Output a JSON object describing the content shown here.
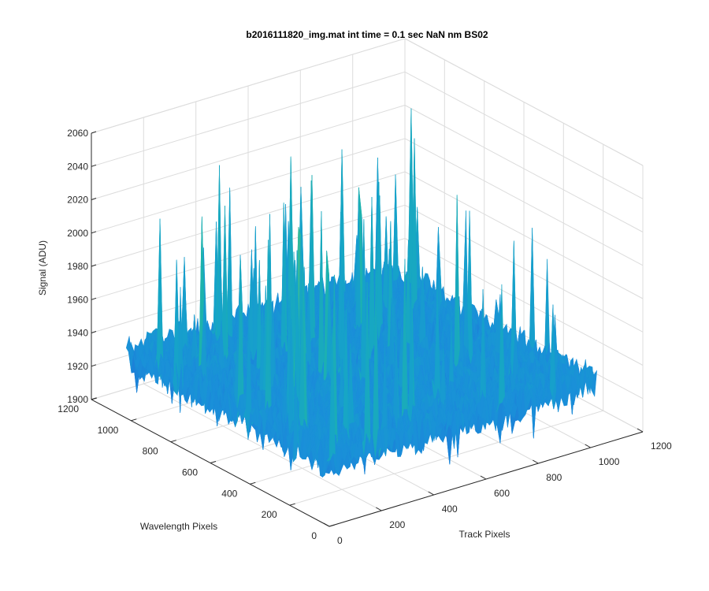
{
  "chart_data": {
    "type": "surface",
    "title": "b2016111820_img.mat int time = 0.1 sec  NaN nm BS02",
    "xlabel": "Track Pixels",
    "ylabel": "Wavelength Pixels",
    "zlabel": "Signal (ADU)",
    "xlim": [
      0,
      1200
    ],
    "ylim": [
      0,
      1200
    ],
    "zlim": [
      1900,
      2060
    ],
    "xticks": [
      "0",
      "200",
      "400",
      "600",
      "800",
      "1000",
      "1200"
    ],
    "yticks": [
      "0",
      "200",
      "400",
      "600",
      "800",
      "1000",
      "1200"
    ],
    "zticks": [
      "1900",
      "1920",
      "1940",
      "1960",
      "1980",
      "2000",
      "2020",
      "2040",
      "2060"
    ],
    "x_data_range": [
      0,
      1024
    ],
    "y_data_range": [
      0,
      1024
    ],
    "z_typical_range": [
      1920,
      1970
    ],
    "z_peak_max": 2045,
    "grid": true,
    "colormap": "parula",
    "surface_colors": [
      "#1f6fd6",
      "#1a8fd9",
      "#16a4c8",
      "#1fb6a6",
      "#4fc08a",
      "#8cc56e",
      "#c6c24e"
    ]
  }
}
